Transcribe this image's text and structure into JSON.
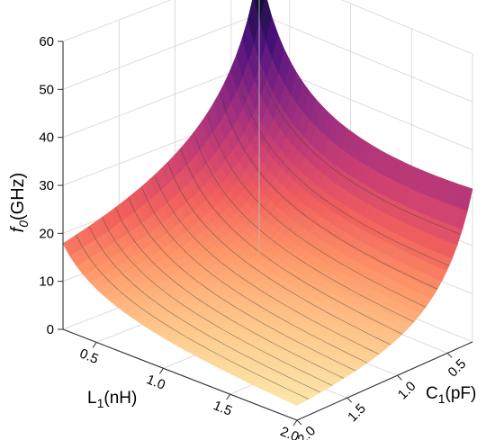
{
  "chart_data": {
    "type": "surface",
    "title": "",
    "zlabel": {
      "main": "f",
      "sub": "0",
      "unit": "(GHz)"
    },
    "xlabel": {
      "main": "L",
      "sub": "1",
      "unit": "(nH)"
    },
    "ylabel": {
      "main": "C",
      "sub": "1",
      "unit": "(pF)"
    },
    "z_ticks": [
      "0",
      "10",
      "20",
      "30",
      "40",
      "50",
      "60"
    ],
    "x_ticks": [
      "0.5",
      "1.0",
      "1.5",
      "2.0"
    ],
    "y_ticks": [
      "0.5",
      "1.0",
      "1.5",
      "2.0"
    ],
    "xlim": [
      0.25,
      2.0
    ],
    "ylim": [
      0.25,
      2.0
    ],
    "zlim": [
      0,
      60
    ],
    "grid": true,
    "colormap": "magma",
    "colormap_stops": [
      "#fcfdbf",
      "#fec98d",
      "#fd9567",
      "#f1605d",
      "#cd4071",
      "#9e2f7f",
      "#721f81",
      "#451077",
      "#180f3d",
      "#000004"
    ],
    "surface_samples": [
      {
        "L1": 0.25,
        "C1": 0.25,
        "f0": 60.0
      },
      {
        "L1": 2.0,
        "C1": 0.25,
        "f0": 40.0
      },
      {
        "L1": 0.25,
        "C1": 2.0,
        "f0": 18.5
      },
      {
        "L1": 2.0,
        "C1": 2.0,
        "f0": 3.0
      },
      {
        "L1": 1.0,
        "C1": 1.0,
        "f0": 16.0
      }
    ]
  }
}
